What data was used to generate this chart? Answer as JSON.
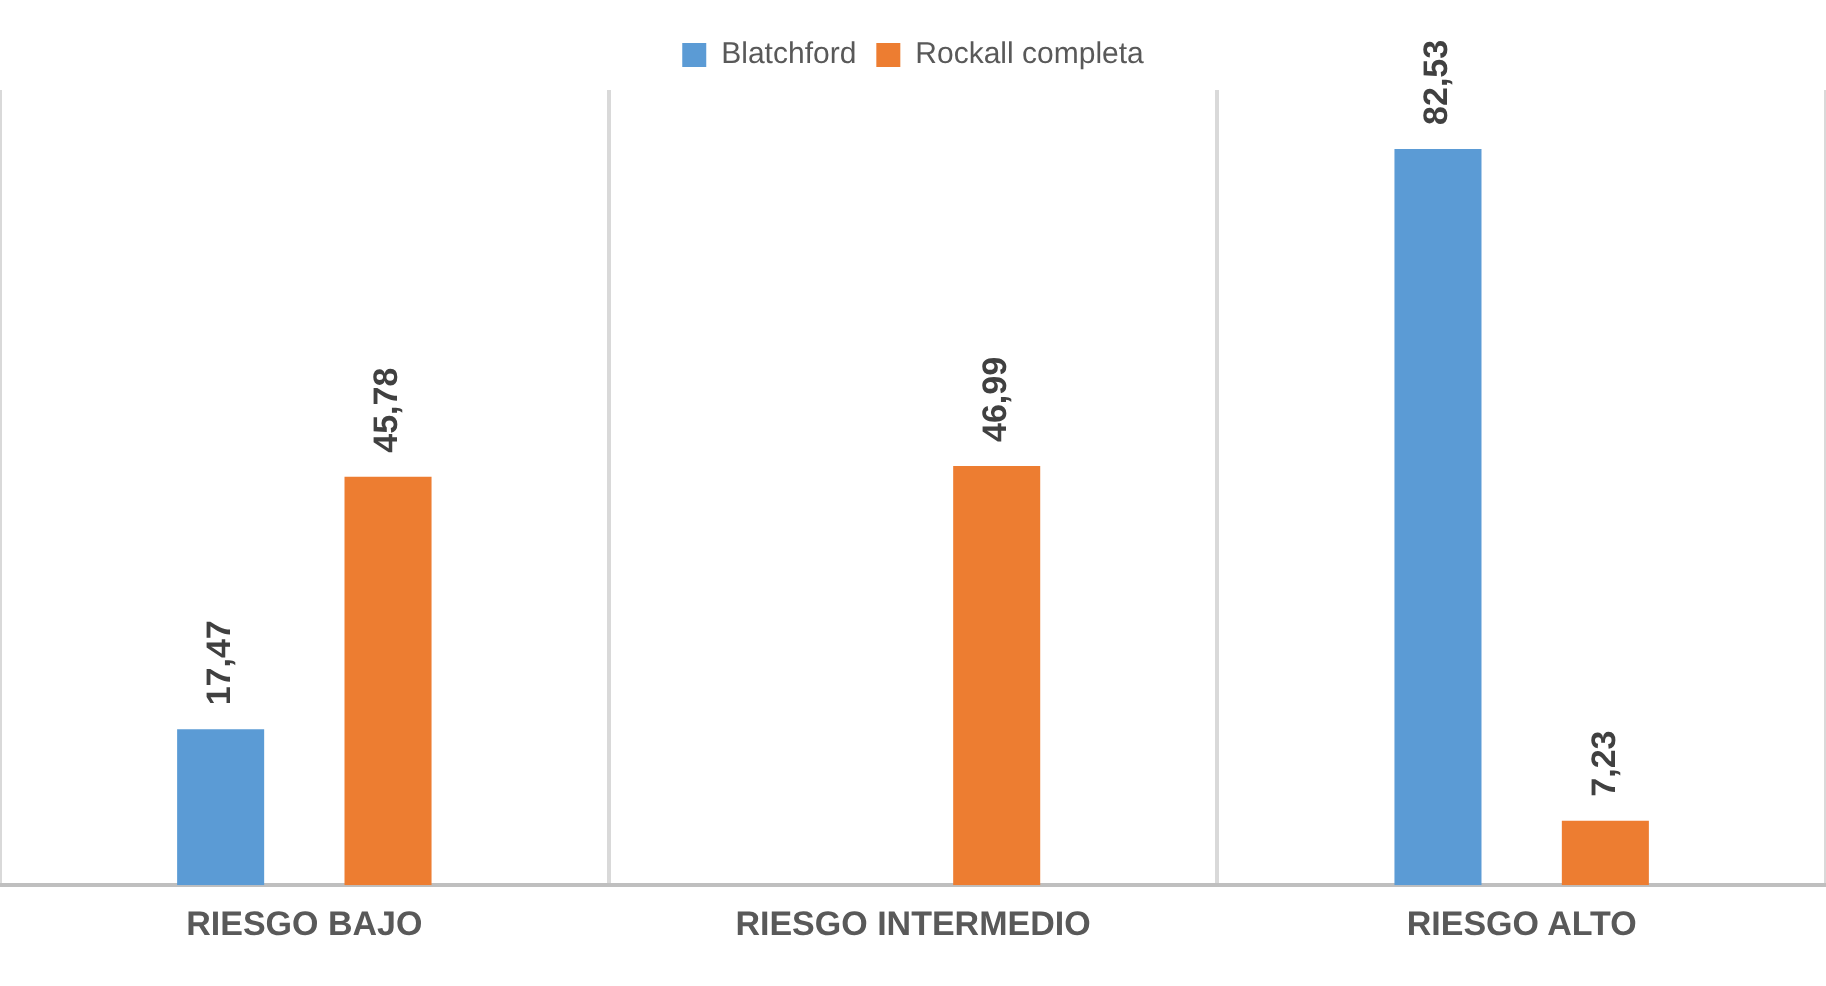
{
  "chart_data": {
    "type": "bar",
    "categories": [
      "RIESGO BAJO",
      "RIESGO INTERMEDIO",
      "RIESGO ALTO"
    ],
    "series": [
      {
        "name": "Blatchford",
        "color": "#5b9bd5",
        "values": [
          17.47,
          null,
          82.53
        ],
        "value_labels": [
          "17,47",
          null,
          "82,53"
        ]
      },
      {
        "name": "Rockall completa",
        "color": "#ed7d31",
        "values": [
          45.78,
          46.99,
          7.23
        ],
        "value_labels": [
          "45,78",
          "46,99",
          "7,23"
        ]
      }
    ],
    "grid": "x",
    "legend": "top"
  }
}
